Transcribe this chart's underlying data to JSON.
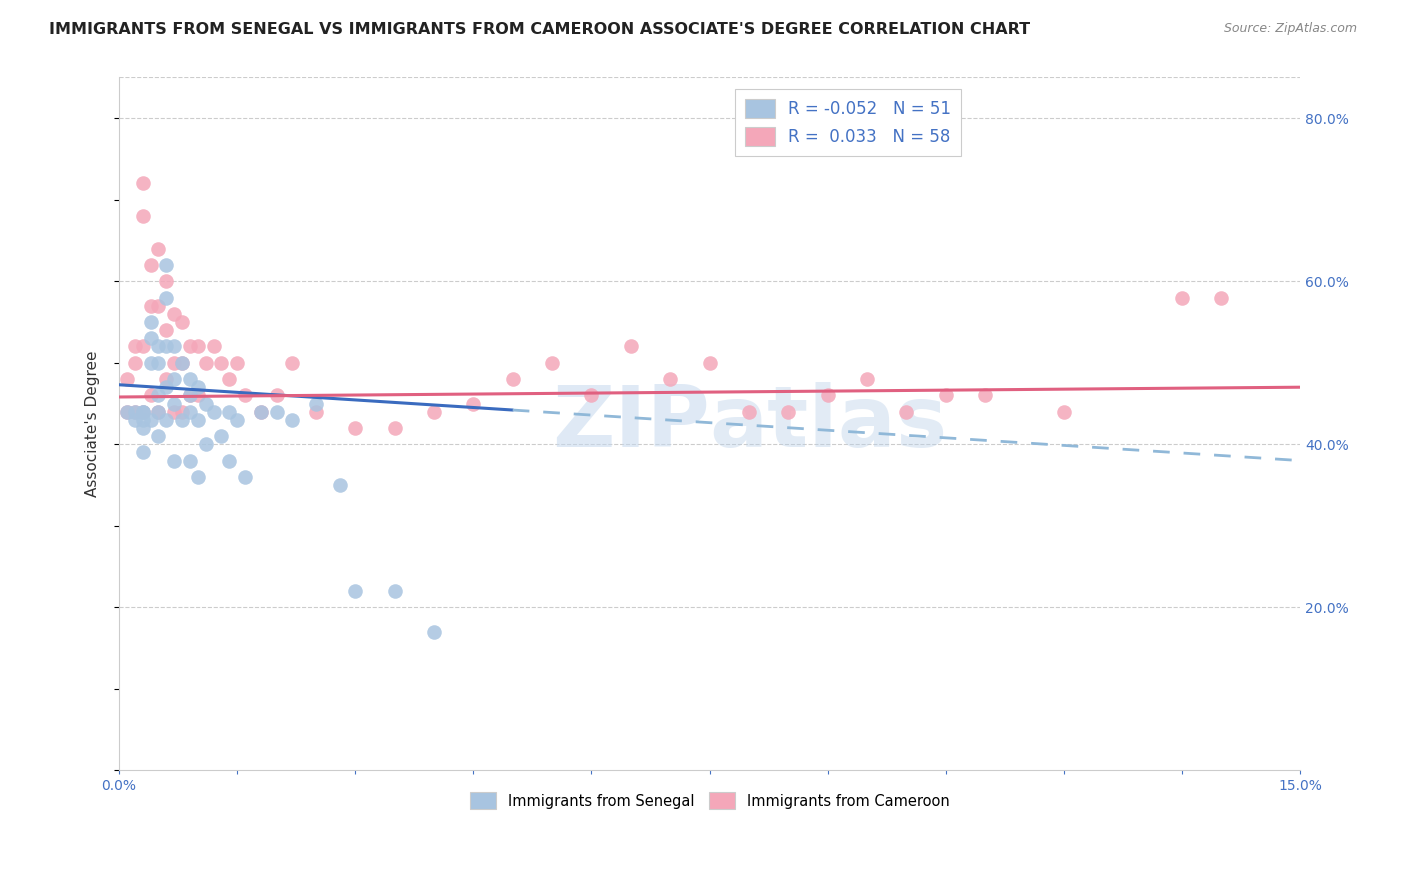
{
  "title": "IMMIGRANTS FROM SENEGAL VS IMMIGRANTS FROM CAMEROON ASSOCIATE'S DEGREE CORRELATION CHART",
  "source": "Source: ZipAtlas.com",
  "ylabel": "Associate's Degree",
  "xlim": [
    0.0,
    0.15
  ],
  "ylim": [
    0.0,
    0.85
  ],
  "legend_r_senegal": "-0.052",
  "legend_n_senegal": "51",
  "legend_r_cameroon": "0.033",
  "legend_n_cameroon": "58",
  "color_senegal": "#a8c4e0",
  "color_cameroon": "#f4a7b9",
  "trendline_senegal_color": "#3a6bbf",
  "trendline_cameroon_color": "#e06080",
  "trendline_dashed_color": "#90b8d8",
  "watermark_zip": "ZIP",
  "watermark_atlas": "atlas",
  "senegal_x": [
    0.001,
    0.002,
    0.002,
    0.003,
    0.003,
    0.003,
    0.003,
    0.003,
    0.004,
    0.004,
    0.004,
    0.004,
    0.005,
    0.005,
    0.005,
    0.005,
    0.005,
    0.006,
    0.006,
    0.006,
    0.006,
    0.006,
    0.007,
    0.007,
    0.007,
    0.007,
    0.008,
    0.008,
    0.009,
    0.009,
    0.009,
    0.009,
    0.01,
    0.01,
    0.01,
    0.011,
    0.011,
    0.012,
    0.013,
    0.014,
    0.014,
    0.015,
    0.016,
    0.018,
    0.02,
    0.022,
    0.025,
    0.028,
    0.03,
    0.035,
    0.04
  ],
  "senegal_y": [
    0.44,
    0.44,
    0.43,
    0.44,
    0.44,
    0.43,
    0.42,
    0.39,
    0.55,
    0.53,
    0.5,
    0.43,
    0.52,
    0.5,
    0.46,
    0.44,
    0.41,
    0.62,
    0.58,
    0.52,
    0.47,
    0.43,
    0.52,
    0.48,
    0.45,
    0.38,
    0.5,
    0.43,
    0.48,
    0.46,
    0.44,
    0.38,
    0.47,
    0.43,
    0.36,
    0.45,
    0.4,
    0.44,
    0.41,
    0.44,
    0.38,
    0.43,
    0.36,
    0.44,
    0.44,
    0.43,
    0.45,
    0.35,
    0.22,
    0.22,
    0.17
  ],
  "cameroon_x": [
    0.001,
    0.001,
    0.002,
    0.002,
    0.002,
    0.003,
    0.003,
    0.003,
    0.003,
    0.004,
    0.004,
    0.004,
    0.005,
    0.005,
    0.005,
    0.006,
    0.006,
    0.006,
    0.007,
    0.007,
    0.007,
    0.008,
    0.008,
    0.008,
    0.009,
    0.009,
    0.01,
    0.01,
    0.011,
    0.012,
    0.013,
    0.014,
    0.015,
    0.016,
    0.018,
    0.02,
    0.022,
    0.025,
    0.03,
    0.035,
    0.04,
    0.045,
    0.05,
    0.055,
    0.06,
    0.065,
    0.07,
    0.075,
    0.08,
    0.085,
    0.09,
    0.095,
    0.1,
    0.105,
    0.11,
    0.12,
    0.135,
    0.14
  ],
  "cameroon_y": [
    0.48,
    0.44,
    0.52,
    0.5,
    0.44,
    0.72,
    0.68,
    0.52,
    0.44,
    0.62,
    0.57,
    0.46,
    0.64,
    0.57,
    0.44,
    0.6,
    0.54,
    0.48,
    0.56,
    0.5,
    0.44,
    0.55,
    0.5,
    0.44,
    0.52,
    0.46,
    0.52,
    0.46,
    0.5,
    0.52,
    0.5,
    0.48,
    0.5,
    0.46,
    0.44,
    0.46,
    0.5,
    0.44,
    0.42,
    0.42,
    0.44,
    0.45,
    0.48,
    0.5,
    0.46,
    0.52,
    0.48,
    0.5,
    0.44,
    0.44,
    0.46,
    0.48,
    0.44,
    0.46,
    0.46,
    0.44,
    0.58,
    0.58
  ],
  "trendline_senegal_x0": 0.0,
  "trendline_senegal_y0": 0.473,
  "trendline_senegal_x1": 0.15,
  "trendline_senegal_y1": 0.38,
  "trendline_senegal_solid_end": 0.05,
  "trendline_cameroon_x0": 0.0,
  "trendline_cameroon_y0": 0.458,
  "trendline_cameroon_x1": 0.15,
  "trendline_cameroon_y1": 0.47
}
